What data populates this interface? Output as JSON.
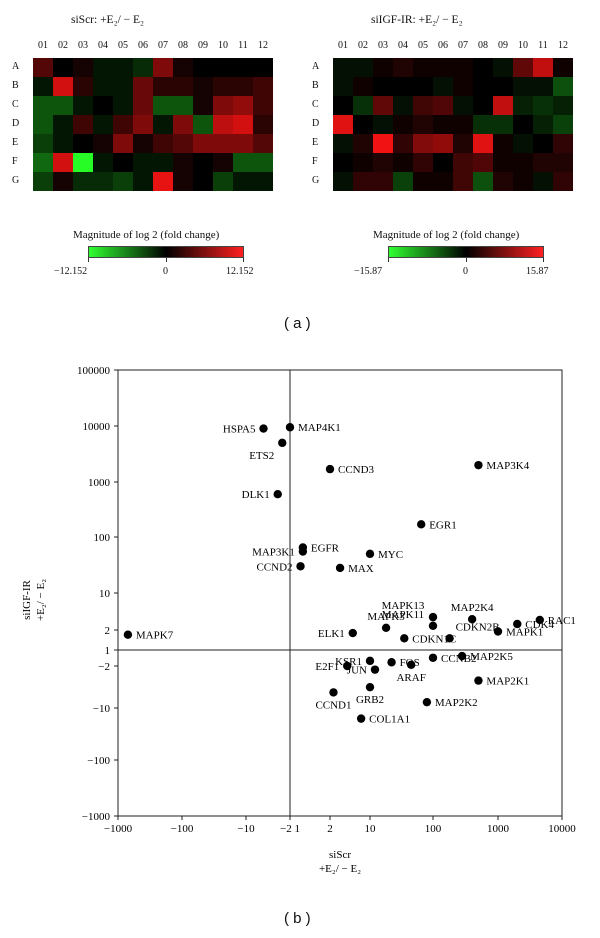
{
  "panel_a_label": "( a )",
  "panel_b_label": "( b )",
  "heatmaps": [
    {
      "title": "siScr: +E₂/ − E₂",
      "columns": [
        "01",
        "02",
        "03",
        "04",
        "05",
        "06",
        "07",
        "08",
        "09",
        "10",
        "11",
        "12"
      ],
      "rows": [
        "A",
        "B",
        "C",
        "D",
        "E",
        "F",
        "G"
      ],
      "values": [
        [
          4,
          0,
          1,
          -1,
          -1,
          -2,
          6,
          1,
          0,
          0,
          0,
          0
        ],
        [
          -1,
          10,
          2,
          -1,
          -1,
          5,
          2,
          2,
          1,
          2,
          2,
          3
        ],
        [
          -4,
          -4,
          -1,
          0,
          -1,
          5,
          -4,
          -4,
          1,
          6,
          7,
          3
        ],
        [
          -4,
          -1,
          3,
          -1,
          3,
          6,
          -1,
          6,
          -4,
          9,
          10,
          2
        ],
        [
          -3,
          -1,
          0,
          1,
          6,
          1,
          3,
          4,
          6,
          6,
          6,
          4
        ],
        [
          -5,
          10,
          -12,
          -1,
          0,
          -1,
          -1,
          1,
          0,
          1,
          -4,
          -4
        ],
        [
          -3,
          1,
          -2,
          -2,
          -3,
          -1,
          11,
          1,
          0,
          -3,
          -1,
          -1
        ]
      ],
      "colorbar_title": "Magnitude of log 2 (fold change)",
      "colorbar_ticks": [
        "−12.152",
        "0",
        "12.152"
      ],
      "scale_max": 12.152
    },
    {
      "title": "siIGF-IR: +E₂/ − E₂",
      "columns": [
        "01",
        "02",
        "03",
        "04",
        "05",
        "06",
        "07",
        "08",
        "09",
        "10",
        "11",
        "12"
      ],
      "rows": [
        "A",
        "B",
        "C",
        "D",
        "E",
        "F",
        "G"
      ],
      "values": [
        [
          -1,
          -1,
          1,
          2,
          1,
          1,
          1,
          0,
          -1,
          6,
          12,
          1
        ],
        [
          -1,
          1,
          0,
          0,
          0,
          -1,
          1,
          0,
          0,
          -1,
          -1,
          -5
        ],
        [
          0,
          -3,
          6,
          -1,
          4,
          5,
          -1,
          0,
          12,
          -2,
          -3,
          -2
        ],
        [
          14,
          0,
          -1,
          1,
          2,
          1,
          1,
          -3,
          -3,
          0,
          -2,
          -4
        ],
        [
          -1,
          2,
          15,
          3,
          8,
          9,
          2,
          14,
          1,
          -1,
          0,
          3
        ],
        [
          0,
          1,
          2,
          1,
          3,
          0,
          4,
          5,
          1,
          1,
          2,
          2
        ],
        [
          -1,
          3,
          3,
          -4,
          1,
          1,
          4,
          -5,
          2,
          1,
          -1,
          3
        ]
      ],
      "colorbar_title": "Magnitude of log 2 (fold change)",
      "colorbar_ticks": [
        "−15.87",
        "0",
        "15.87"
      ],
      "scale_max": 15.87
    }
  ],
  "colors": {
    "positive": "#ff2020",
    "negative": "#30ff30",
    "zero": "#000000"
  },
  "chart_data": {
    "type": "scatter",
    "xlabel_lines": [
      "siScr",
      "+E₂/ − E₂"
    ],
    "ylabel_lines": [
      "siIGF-IR",
      "+E₂/ − E₂"
    ],
    "xticks": [
      "−1000",
      "−100",
      "−10",
      "−2 1",
      "2",
      "10",
      "100",
      "1000",
      "10000"
    ],
    "yticks": [
      "100000",
      "10000",
      "1000",
      "100",
      "10",
      "2",
      "1",
      "−2",
      "−10",
      "−100",
      "−1000"
    ],
    "x_axis_line_at": 1,
    "y_axis_line_at": 1,
    "points": [
      {
        "label": "HSPA5",
        "x": -4,
        "y": 9000,
        "label_side": "left"
      },
      {
        "label": "MAP4K1",
        "x": 1,
        "y": 9500,
        "label_side": "right"
      },
      {
        "label": "ETS2",
        "x": -1.5,
        "y": 5000,
        "label_side": "below-left"
      },
      {
        "label": "CCND3",
        "x": 2,
        "y": 1700,
        "label_side": "right"
      },
      {
        "label": "MAP3K4",
        "x": 500,
        "y": 2000,
        "label_side": "right"
      },
      {
        "label": "DLK1",
        "x": -1.9,
        "y": 600,
        "label_side": "left"
      },
      {
        "label": "EGR1",
        "x": 65,
        "y": 170,
        "label_side": "right"
      },
      {
        "label": "EGFR",
        "x": 1.25,
        "y": 65,
        "label_side": "right"
      },
      {
        "label": "MAP3K1",
        "x": 1.25,
        "y": 55,
        "label_side": "left"
      },
      {
        "label": "MYC",
        "x": 10,
        "y": 50,
        "label_side": "right"
      },
      {
        "label": "CCND2",
        "x": 1.2,
        "y": 30,
        "label_side": "left"
      },
      {
        "label": "MAX",
        "x": 3,
        "y": 28,
        "label_side": "right"
      },
      {
        "label": "MAPK13",
        "x": 100,
        "y": 3.5,
        "label_side": "above-left"
      },
      {
        "label": "MAPK11",
        "x": 100,
        "y": 2.4,
        "label_side": "above-left"
      },
      {
        "label": "MAP2K4",
        "x": 400,
        "y": 3.2,
        "label_side": "above"
      },
      {
        "label": "RAC1",
        "x": 4500,
        "y": 3.1,
        "label_side": "right"
      },
      {
        "label": "CDK4",
        "x": 2000,
        "y": 2.6,
        "label_side": "right"
      },
      {
        "label": "CDKN2B",
        "x": 180,
        "y": 1.5,
        "label_side": "above-right"
      },
      {
        "label": "MAPK1",
        "x": 1000,
        "y": 1.9,
        "label_side": "right"
      },
      {
        "label": "MAPK7",
        "x": -700,
        "y": 1.7,
        "label_side": "right"
      },
      {
        "label": "ELK1",
        "x": 5,
        "y": 1.8,
        "label_side": "left"
      },
      {
        "label": "MAPK3",
        "x": 18,
        "y": 2.2,
        "label_side": "above"
      },
      {
        "label": "CDKN1C",
        "x": 35,
        "y": 1.5,
        "label_side": "right"
      },
      {
        "label": "MAP2K5",
        "x": 280,
        "y": -1.3,
        "label_side": "right"
      },
      {
        "label": "CCNB2",
        "x": 100,
        "y": -1.4,
        "label_side": "right"
      },
      {
        "label": "KSR1",
        "x": 10,
        "y": -1.6,
        "label_side": "left"
      },
      {
        "label": "FOS",
        "x": 22,
        "y": -1.7,
        "label_side": "right"
      },
      {
        "label": "E2F1",
        "x": 4,
        "y": -2,
        "label_side": "left"
      },
      {
        "label": "JUN",
        "x": 12,
        "y": -2.3,
        "label_side": "left"
      },
      {
        "label": "ARAF",
        "x": 45,
        "y": -1.9,
        "label_side": "below"
      },
      {
        "label": "MAP2K1",
        "x": 500,
        "y": -3.5,
        "label_side": "right"
      },
      {
        "label": "GRB2",
        "x": 10,
        "y": -4.5,
        "label_side": "below"
      },
      {
        "label": "CCND1",
        "x": 2.3,
        "y": -5.5,
        "label_side": "below"
      },
      {
        "label": "MAP2K2",
        "x": 80,
        "y": -8,
        "label_side": "right"
      },
      {
        "label": "COL1A1",
        "x": 7,
        "y": -16,
        "label_side": "right"
      }
    ]
  }
}
